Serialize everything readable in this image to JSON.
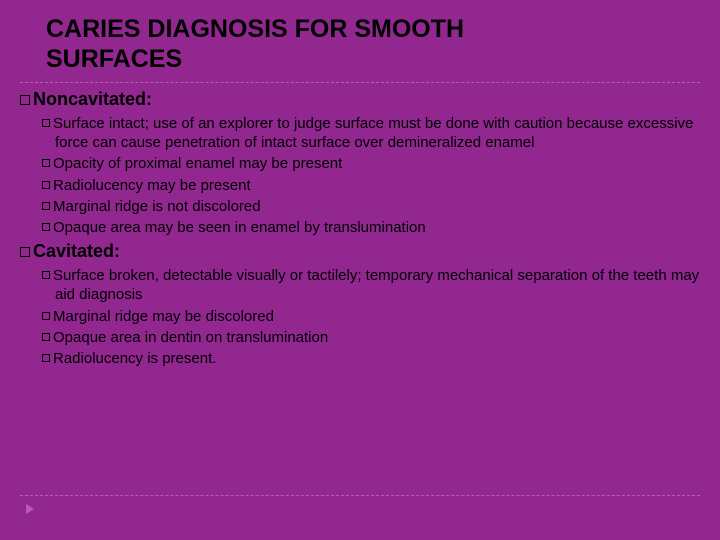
{
  "title_line1": "CARIES DIAGNOSIS FOR SMOOTH",
  "title_line2": "SURFACES",
  "sections": [
    {
      "heading": "Noncavitated:",
      "items": [
        "Surface intact; use of an explorer to judge surface must be done with caution because excessive force can cause penetration of intact surface over demineralized enamel",
        "Opacity of proximal enamel may be present",
        "Radiolucency may be present",
        "Marginal ridge is not discolored",
        "Opaque area may be seen in enamel by translumination"
      ]
    },
    {
      "heading": "Cavitated:",
      "items": [
        "Surface broken, detectable visually or tactilely; temporary mechanical separation of the teeth may aid diagnosis",
        "Marginal ridge may be discolored",
        "Opaque area in dentin on translumination",
        "Radiolucency is present."
      ]
    }
  ],
  "colors": {
    "background": "#922790",
    "text": "#000000",
    "dash": "#b85db5"
  }
}
